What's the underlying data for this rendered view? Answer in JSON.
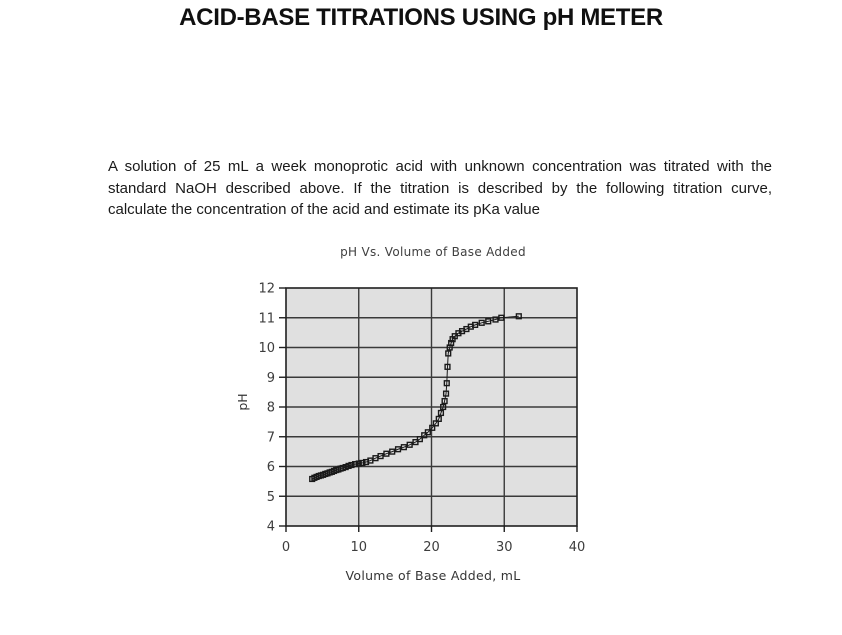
{
  "page": {
    "title": "ACID-BASE TITRATIONS USING pH METER"
  },
  "problem": {
    "lines": [
      "A solution of 25 mL a week monoprotic acid with unknown concentration was titrated with the",
      "standard NaOH described above. If the titration is described by the following titration curve,",
      "calculate the concentration of the acid and estimate its pKa value"
    ]
  },
  "chart_data": {
    "type": "scatter",
    "title": "pH Vs. Volume of Base Added",
    "xlabel": "Volume of Base Added, mL",
    "ylabel": "pH",
    "xlim": [
      0,
      40
    ],
    "ylim": [
      4,
      12
    ],
    "xticks": [
      0,
      10,
      20,
      30,
      40
    ],
    "yticks": [
      4,
      5,
      6,
      7,
      8,
      9,
      10,
      11,
      12
    ],
    "grid": true,
    "legend": "none",
    "marker": "open-square",
    "plot_bg": "#e0e0e0",
    "grid_color": "#3a3a3a",
    "axis_color": "#1f1f1f",
    "label_color": "#3d3d3d",
    "point_color": "#1a1a1a",
    "points": [
      [
        3.6,
        5.58
      ],
      [
        3.9,
        5.62
      ],
      [
        4.2,
        5.65
      ],
      [
        4.5,
        5.68
      ],
      [
        4.8,
        5.7
      ],
      [
        5.1,
        5.72
      ],
      [
        5.4,
        5.75
      ],
      [
        5.7,
        5.77
      ],
      [
        6.0,
        5.8
      ],
      [
        6.3,
        5.82
      ],
      [
        6.6,
        5.85
      ],
      [
        6.9,
        5.88
      ],
      [
        7.2,
        5.9
      ],
      [
        7.5,
        5.93
      ],
      [
        7.8,
        5.95
      ],
      [
        8.2,
        5.98
      ],
      [
        8.6,
        6.02
      ],
      [
        9.0,
        6.05
      ],
      [
        9.5,
        6.08
      ],
      [
        10.0,
        6.1
      ],
      [
        10.5,
        6.12
      ],
      [
        11.0,
        6.15
      ],
      [
        11.6,
        6.2
      ],
      [
        12.3,
        6.28
      ],
      [
        13.0,
        6.35
      ],
      [
        13.8,
        6.43
      ],
      [
        14.6,
        6.5
      ],
      [
        15.4,
        6.58
      ],
      [
        16.2,
        6.65
      ],
      [
        17.0,
        6.73
      ],
      [
        17.8,
        6.82
      ],
      [
        18.4,
        6.92
      ],
      [
        19.0,
        7.05
      ],
      [
        19.5,
        7.15
      ],
      [
        20.1,
        7.3
      ],
      [
        20.6,
        7.45
      ],
      [
        21.0,
        7.6
      ],
      [
        21.3,
        7.8
      ],
      [
        21.6,
        8.0
      ],
      [
        21.8,
        8.2
      ],
      [
        22.0,
        8.45
      ],
      [
        22.1,
        8.8
      ],
      [
        22.2,
        9.35
      ],
      [
        22.3,
        9.8
      ],
      [
        22.5,
        10.0
      ],
      [
        22.7,
        10.15
      ],
      [
        22.9,
        10.28
      ],
      [
        23.2,
        10.38
      ],
      [
        23.7,
        10.48
      ],
      [
        24.2,
        10.55
      ],
      [
        24.8,
        10.62
      ],
      [
        25.4,
        10.7
      ],
      [
        26.0,
        10.76
      ],
      [
        26.9,
        10.83
      ],
      [
        27.8,
        10.88
      ],
      [
        28.8,
        10.94
      ],
      [
        29.6,
        11.0
      ],
      [
        32.0,
        11.05
      ]
    ]
  }
}
